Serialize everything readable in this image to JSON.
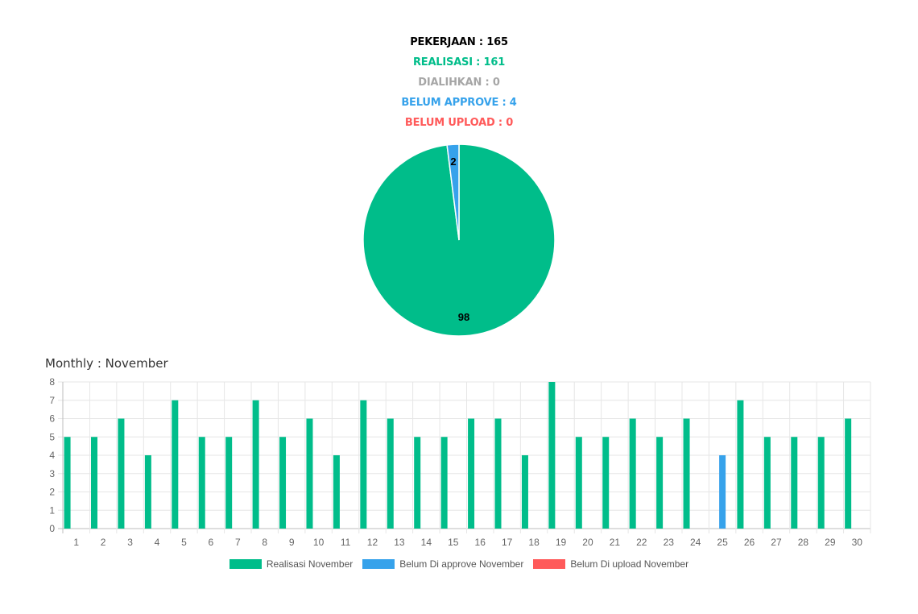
{
  "summary": {
    "pekerjaan": "PEKERJAAN : 165",
    "realisasi": "REALISASI : 161",
    "dialihkan": "DIALIHKAN : 0",
    "belum_approve": "BELUM APPROVE : 4",
    "belum_upload": "BELUM UPLOAD : 0"
  },
  "colors": {
    "realisasi": "#00bd8a",
    "approve": "#36a2eb",
    "upload": "#ff5a5a",
    "dialihkan": "#a6a6a6",
    "pekerjaan": "#000000"
  },
  "section_title": "Monthly : November",
  "chart_data": [
    {
      "type": "pie",
      "slices": [
        {
          "label": "98",
          "value": 98,
          "color": "#00bd8a"
        },
        {
          "label": "2",
          "value": 2,
          "color": "#36a2eb"
        }
      ]
    },
    {
      "type": "bar",
      "categories": [
        "1",
        "2",
        "3",
        "4",
        "5",
        "6",
        "7",
        "8",
        "9",
        "10",
        "11",
        "12",
        "13",
        "14",
        "15",
        "16",
        "17",
        "18",
        "19",
        "20",
        "21",
        "22",
        "23",
        "24",
        "25",
        "26",
        "27",
        "28",
        "29",
        "30"
      ],
      "series": [
        {
          "name": "Realisasi November",
          "color": "#00bd8a",
          "values": [
            5,
            5,
            6,
            4,
            7,
            5,
            5,
            7,
            5,
            6,
            4,
            7,
            6,
            5,
            5,
            6,
            6,
            4,
            8,
            5,
            5,
            6,
            5,
            6,
            0,
            7,
            5,
            5,
            5,
            6
          ]
        },
        {
          "name": "Belum Di approve November",
          "color": "#36a2eb",
          "values": [
            0,
            0,
            0,
            0,
            0,
            0,
            0,
            0,
            0,
            0,
            0,
            0,
            0,
            0,
            0,
            0,
            0,
            0,
            0,
            0,
            0,
            0,
            0,
            0,
            4,
            0,
            0,
            0,
            0,
            0
          ]
        },
        {
          "name": "Belum Di upload November",
          "color": "#ff5a5a",
          "values": [
            0,
            0,
            0,
            0,
            0,
            0,
            0,
            0,
            0,
            0,
            0,
            0,
            0,
            0,
            0,
            0,
            0,
            0,
            0,
            0,
            0,
            0,
            0,
            0,
            0,
            0,
            0,
            0,
            0,
            0
          ]
        }
      ],
      "yticks": [
        "0",
        "1",
        "2",
        "3",
        "4",
        "5",
        "6",
        "7",
        "8"
      ],
      "ylim": [
        0,
        8
      ],
      "grid": true,
      "legend": "bottom"
    }
  ]
}
